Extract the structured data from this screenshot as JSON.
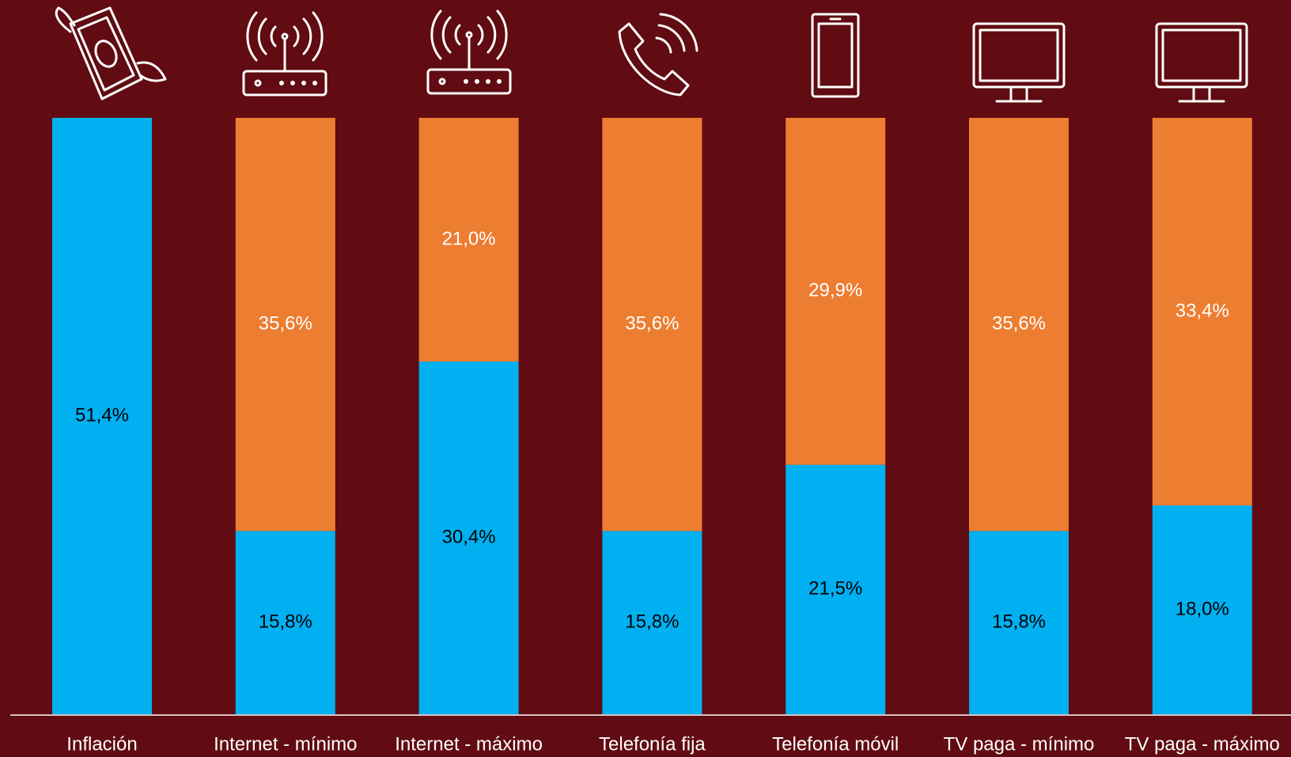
{
  "chart_data": {
    "type": "stacked_bar",
    "categories": [
      "Inflación",
      "Internet - mínimo",
      "Internet - máximo",
      "Telefonía fija",
      "Telefonía móvil",
      "TV paga - mínimo",
      "TV paga - máximo"
    ],
    "series": [
      {
        "color": "#00b0f0",
        "label_color": "#000000",
        "values": [
          51.4,
          15.8,
          30.4,
          15.8,
          21.5,
          15.8,
          18.0
        ],
        "value_labels": [
          "51,4%",
          "15,8%",
          "30,4%",
          "15,8%",
          "21,5%",
          "15,8%",
          "18,0%"
        ]
      },
      {
        "color": "#ed7d31",
        "label_color": "#ffffff",
        "values": [
          null,
          35.6,
          21.0,
          35.6,
          29.9,
          35.6,
          33.4
        ],
        "value_labels": [
          null,
          "35,6%",
          "21,0%",
          "35,6%",
          "29,9%",
          "35,6%",
          "33,4%"
        ]
      }
    ],
    "ylim": [
      0,
      51.4
    ]
  }
}
